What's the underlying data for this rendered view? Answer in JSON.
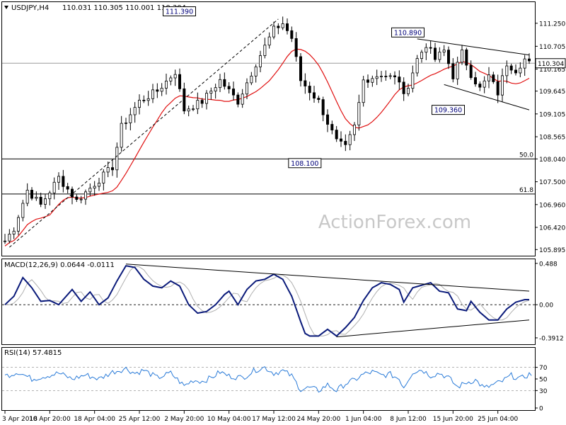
{
  "chart_data": [
    {
      "type": "candlestick",
      "title": "USDJPY,H4",
      "ohlc_header": "110.031 110.305 110.001 110.304",
      "watermark": "ActionForex.com",
      "ylim": [
        105.8,
        111.7
      ],
      "price_ticks": [
        "111.250",
        "110.705",
        "110.165",
        "109.645",
        "109.105",
        "108.565",
        "108.040",
        "107.500",
        "106.960",
        "106.420",
        "105.895"
      ],
      "current_price": "110.304",
      "annotations": [
        {
          "label": "111.390",
          "x": 40.5,
          "y": 111.39
        },
        {
          "label": "110.890",
          "x": 91.5,
          "y": 110.89
        },
        {
          "label": "109.360",
          "x": 100.5,
          "y": 109.36
        },
        {
          "label": "108.100",
          "x": 68.5,
          "y": 108.1
        }
      ],
      "fib_levels": [
        {
          "label": "50.0",
          "value": 108.04
        },
        {
          "label": "61.8",
          "value": 107.21
        }
      ],
      "current_level_line": 110.304,
      "x_labels": [
        "3 Apr 2018",
        "10 Apr 20:00",
        "18 Apr 04:00",
        "25 Apr 12:00",
        "2 May 20:00",
        "10 May 04:00",
        "17 May 12:00",
        "24 May 20:00",
        "1 Jun 04:00",
        "8 Jun 12:00",
        "15 Jun 20:00",
        "25 Jun 04:00"
      ],
      "x_label_index": [
        0,
        10,
        20,
        30,
        40,
        50,
        60,
        70,
        80,
        90,
        100,
        110
      ],
      "anchors": [
        [
          0,
          106.1
        ],
        [
          2,
          106.4
        ],
        [
          5,
          107.3
        ],
        [
          8,
          106.95
        ],
        [
          12,
          107.6
        ],
        [
          16,
          107.05
        ],
        [
          20,
          107.45
        ],
        [
          24,
          107.85
        ],
        [
          26,
          108.8
        ],
        [
          30,
          109.4
        ],
        [
          34,
          109.65
        ],
        [
          38,
          110.1
        ],
        [
          40,
          109.2
        ],
        [
          44,
          109.4
        ],
        [
          48,
          109.9
        ],
        [
          52,
          109.4
        ],
        [
          56,
          110.3
        ],
        [
          60,
          111.1
        ],
        [
          62,
          111.25
        ],
        [
          64,
          110.9
        ],
        [
          66,
          109.9
        ],
        [
          70,
          109.4
        ],
        [
          72,
          108.9
        ],
        [
          74,
          108.45
        ],
        [
          76,
          108.3
        ],
        [
          78,
          108.8
        ],
        [
          80,
          109.9
        ],
        [
          84,
          110.05
        ],
        [
          88,
          109.9
        ],
        [
          89,
          109.5
        ],
        [
          92,
          110.4
        ],
        [
          94,
          110.75
        ],
        [
          96,
          110.4
        ],
        [
          98,
          110.6
        ],
        [
          100,
          110.0
        ],
        [
          102,
          110.55
        ],
        [
          104,
          110.05
        ],
        [
          106,
          109.7
        ],
        [
          108,
          110.0
        ],
        [
          110,
          109.6
        ],
        [
          112,
          110.3
        ],
        [
          114,
          110.15
        ],
        [
          116,
          110.4
        ],
        [
          117,
          110.3
        ]
      ],
      "trendlines": [
        {
          "style": "dashed",
          "from": [
            1,
            105.95
          ],
          "to": [
            61,
            111.35
          ]
        },
        {
          "style": "solid",
          "from": [
            92,
            110.88
          ],
          "to": [
            117,
            110.5
          ]
        },
        {
          "style": "solid",
          "from": [
            98,
            109.8
          ],
          "to": [
            117,
            109.2
          ]
        }
      ]
    },
    {
      "type": "line",
      "title": "MACD(12,26,9) 0.0644 -0.0111",
      "ylim": [
        -0.45,
        0.52
      ],
      "ticks": [
        "0.488",
        "0.00",
        "-0.3912"
      ],
      "anchors": [
        [
          0,
          0.0
        ],
        [
          2,
          0.1
        ],
        [
          4,
          0.32
        ],
        [
          6,
          0.2
        ],
        [
          8,
          0.04
        ],
        [
          10,
          0.05
        ],
        [
          12,
          0.0
        ],
        [
          15,
          0.18
        ],
        [
          17,
          0.04
        ],
        [
          19,
          0.15
        ],
        [
          21,
          0.0
        ],
        [
          23,
          0.08
        ],
        [
          25,
          0.28
        ],
        [
          27,
          0.46
        ],
        [
          29,
          0.44
        ],
        [
          31,
          0.3
        ],
        [
          33,
          0.22
        ],
        [
          35,
          0.2
        ],
        [
          37,
          0.28
        ],
        [
          39,
          0.22
        ],
        [
          41,
          0.0
        ],
        [
          43,
          -0.1
        ],
        [
          45,
          -0.08
        ],
        [
          47,
          0.0
        ],
        [
          49,
          0.12
        ],
        [
          50,
          0.16
        ],
        [
          52,
          0.0
        ],
        [
          54,
          0.18
        ],
        [
          56,
          0.28
        ],
        [
          58,
          0.3
        ],
        [
          60,
          0.36
        ],
        [
          62,
          0.3
        ],
        [
          64,
          0.1
        ],
        [
          66,
          -0.2
        ],
        [
          67,
          -0.34
        ],
        [
          68,
          -0.37
        ],
        [
          70,
          -0.37
        ],
        [
          72,
          -0.29
        ],
        [
          73,
          -0.33
        ],
        [
          74,
          -0.37
        ],
        [
          76,
          -0.27
        ],
        [
          78,
          -0.15
        ],
        [
          80,
          0.05
        ],
        [
          82,
          0.2
        ],
        [
          84,
          0.26
        ],
        [
          86,
          0.24
        ],
        [
          88,
          0.18
        ],
        [
          89,
          0.03
        ],
        [
          91,
          0.2
        ],
        [
          93,
          0.23
        ],
        [
          95,
          0.26
        ],
        [
          97,
          0.16
        ],
        [
          99,
          0.14
        ],
        [
          101,
          -0.05
        ],
        [
          103,
          -0.07
        ],
        [
          104,
          0.04
        ],
        [
          106,
          -0.09
        ],
        [
          108,
          -0.18
        ],
        [
          110,
          -0.18
        ],
        [
          112,
          -0.05
        ],
        [
          114,
          0.03
        ],
        [
          116,
          0.06
        ]
      ],
      "signal_lag": 1.6,
      "trendlines": [
        {
          "style": "solid",
          "from": [
            27,
            0.48
          ],
          "to": [
            117,
            0.16
          ]
        },
        {
          "style": "solid",
          "from": [
            74,
            -0.38
          ],
          "to": [
            117,
            -0.18
          ]
        }
      ]
    },
    {
      "type": "line",
      "title": "RSI(14) 57.4815",
      "ylim": [
        0,
        100
      ],
      "ticks": [
        "70",
        "50",
        "30",
        "0"
      ],
      "levels": [
        70,
        30
      ],
      "anchors": [
        [
          0,
          55
        ],
        [
          3,
          62
        ],
        [
          6,
          50
        ],
        [
          9,
          55
        ],
        [
          12,
          60
        ],
        [
          15,
          50
        ],
        [
          18,
          57
        ],
        [
          21,
          50
        ],
        [
          24,
          62
        ],
        [
          27,
          68
        ],
        [
          29,
          60
        ],
        [
          31,
          65
        ],
        [
          34,
          52
        ],
        [
          37,
          60
        ],
        [
          40,
          38
        ],
        [
          42,
          48
        ],
        [
          44,
          46
        ],
        [
          46,
          52
        ],
        [
          48,
          62
        ],
        [
          50,
          55
        ],
        [
          53,
          52
        ],
        [
          56,
          66
        ],
        [
          58,
          70
        ],
        [
          60,
          60
        ],
        [
          62,
          64
        ],
        [
          64,
          55
        ],
        [
          66,
          32
        ],
        [
          68,
          35
        ],
        [
          70,
          30
        ],
        [
          72,
          40
        ],
        [
          74,
          30
        ],
        [
          76,
          42
        ],
        [
          78,
          48
        ],
        [
          80,
          58
        ],
        [
          82,
          62
        ],
        [
          84,
          56
        ],
        [
          86,
          58
        ],
        [
          88,
          50
        ],
        [
          89,
          36
        ],
        [
          91,
          62
        ],
        [
          93,
          66
        ],
        [
          95,
          56
        ],
        [
          97,
          60
        ],
        [
          99,
          52
        ],
        [
          101,
          36
        ],
        [
          103,
          44
        ],
        [
          105,
          48
        ],
        [
          107,
          34
        ],
        [
          109,
          40
        ],
        [
          111,
          46
        ],
        [
          113,
          56
        ],
        [
          115,
          50
        ],
        [
          117,
          58
        ]
      ]
    }
  ]
}
